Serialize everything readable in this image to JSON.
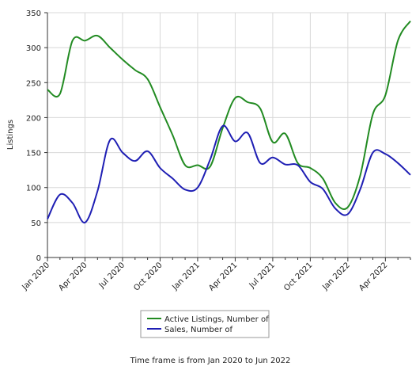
{
  "chart_data": {
    "type": "line",
    "y_label": "Listings",
    "footer": "Time frame is from Jan 2020 to Jun 2022",
    "categories": [
      "Jan 2020",
      null,
      null,
      "Apr 2020",
      null,
      null,
      "Jul 2020",
      null,
      null,
      "Oct 2020",
      null,
      null,
      "Jan 2021",
      null,
      null,
      "Apr 2021",
      null,
      null,
      "Jul 2021",
      null,
      null,
      "Oct 2021",
      null,
      null,
      "Jan 2022",
      null,
      null,
      "Apr 2022",
      null,
      null
    ],
    "series": [
      {
        "name": "Active Listings, Number of",
        "color": "#228b22",
        "values": [
          240,
          234,
          310,
          310,
          317,
          300,
          283,
          268,
          255,
          215,
          175,
          132,
          132,
          130,
          185,
          228,
          222,
          213,
          165,
          177,
          135,
          128,
          113,
          78,
          72,
          118,
          205,
          232,
          310,
          338
        ]
      },
      {
        "name": "Sales, Number of",
        "color": "#1f1fb4",
        "values": [
          55,
          90,
          78,
          50,
          95,
          168,
          150,
          138,
          152,
          128,
          113,
          97,
          100,
          140,
          188,
          166,
          178,
          135,
          143,
          133,
          132,
          108,
          98,
          70,
          62,
          98,
          150,
          148,
          135,
          118
        ]
      }
    ],
    "ylim": [
      0,
      350
    ],
    "yticks": [
      0,
      50,
      100,
      150,
      200,
      250,
      300,
      350
    ],
    "grid": true
  }
}
